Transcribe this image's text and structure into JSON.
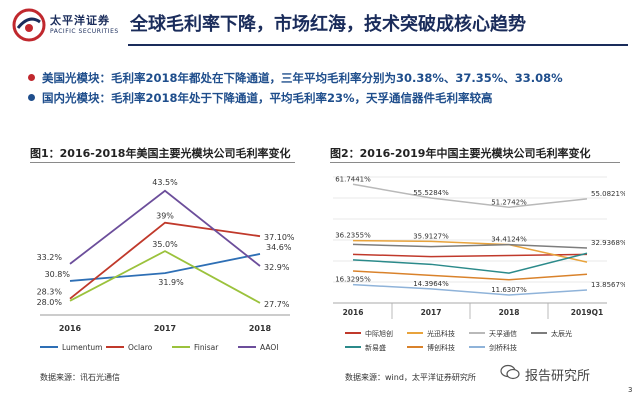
{
  "header": {
    "logo_cn": "太平洋证券",
    "logo_en": "PACIFIC SECURITIES",
    "title": "全球毛利率下降，市场红海，技术突破成核心趋势"
  },
  "bullets": [
    {
      "key": "美国光模块：",
      "text": "毛利率2018年都处在下降通道，三年平均毛利率分别为30.38%、37.35%、33.08%"
    },
    {
      "key": "国内光模块：",
      "text": "毛利率2018年处于下降通道，平均毛利率23%，天孚通信器件毛利率较高"
    }
  ],
  "colors": {
    "bullet1": "#c0282e",
    "bullet2": "#1f4e8c"
  },
  "chart_data": [
    {
      "type": "line",
      "title": "图1：2016-2018年美国主要光模块公司毛利率变化",
      "categories": [
        "2016",
        "2017",
        "2018"
      ],
      "ylim": [
        26,
        46
      ],
      "series": [
        {
          "name": "Lumentum",
          "color": "#2e6fb5",
          "values": [
            30.8,
            31.9,
            34.6
          ],
          "labels": [
            "30.8%",
            "31.9%",
            "34.6%"
          ]
        },
        {
          "name": "Oclaro",
          "color": "#c0392b",
          "values": [
            28.3,
            39.0,
            37.1
          ],
          "labels": [
            "28.3%",
            "39%",
            "37.10%"
          ]
        },
        {
          "name": "Finisar",
          "color": "#9bc23c",
          "values": [
            28.0,
            35.0,
            27.7
          ],
          "labels": [
            "28.0%",
            "35.0%",
            "27.7%"
          ]
        },
        {
          "name": "AAOI",
          "color": "#6c4e9b",
          "values": [
            33.2,
            43.5,
            32.9
          ],
          "labels": [
            "33.2%",
            "43.5%",
            "32.9%"
          ]
        }
      ],
      "source": "数据来源：讯石光通信"
    },
    {
      "type": "line",
      "title": "图2：2016-2019年中国主要光模块公司毛利率变化",
      "categories": [
        "2016",
        "2017",
        "2018",
        "2019Q1"
      ],
      "ylim": [
        8,
        65
      ],
      "series": [
        {
          "name": "中际旭创",
          "color": "#c0392b",
          "values": [
            30.0,
            29.0,
            29.5,
            30.0
          ]
        },
        {
          "name": "光迅科技",
          "color": "#e8a33c",
          "values": [
            36.2,
            35.9,
            34.4,
            26.5
          ]
        },
        {
          "name": "天孚通信",
          "color": "#b9b9b9",
          "values": [
            61.7,
            55.5,
            51.3,
            55.1
          ]
        },
        {
          "name": "太辰光",
          "color": "#7d7d7d",
          "values": [
            34.5,
            33.5,
            34.4,
            32.9
          ]
        },
        {
          "name": "新易盛",
          "color": "#2b8a8a",
          "values": [
            27.5,
            25.5,
            21.5,
            30.5
          ]
        },
        {
          "name": "博创科技",
          "color": "#d9822b",
          "values": [
            22.5,
            20.5,
            18.5,
            21.0
          ]
        },
        {
          "name": "剑桥科技",
          "color": "#8fb3d9",
          "values": [
            16.3,
            14.4,
            11.6,
            13.9
          ]
        }
      ],
      "annotations": [
        {
          "text": "61.7441%",
          "x": "2016",
          "y": 61.7
        },
        {
          "text": "55.5284%",
          "x": "2017",
          "y": 55.5
        },
        {
          "text": "51.2742%",
          "x": "2018",
          "y": 51.3
        },
        {
          "text": "55.0821%",
          "x": "2019Q1",
          "y": 55.1
        },
        {
          "text": "36.2355%",
          "x": "2016",
          "y": 36.2
        },
        {
          "text": "35.9127%",
          "x": "2017",
          "y": 35.9
        },
        {
          "text": "34.4124%",
          "x": "2018",
          "y": 34.4
        },
        {
          "text": "32.9368%",
          "x": "2019Q1",
          "y": 32.9
        },
        {
          "text": "16.3295%",
          "x": "2016",
          "y": 16.3
        },
        {
          "text": "14.3964%",
          "x": "2017",
          "y": 14.4
        },
        {
          "text": "11.6307%",
          "x": "2018",
          "y": 11.6
        },
        {
          "text": "13.8567%",
          "x": "2019Q1",
          "y": 13.9
        }
      ],
      "source": "数据来源：wind，太平洋证券研究所"
    }
  ],
  "footer": {
    "watermark": "报告研究所",
    "page": "3"
  }
}
